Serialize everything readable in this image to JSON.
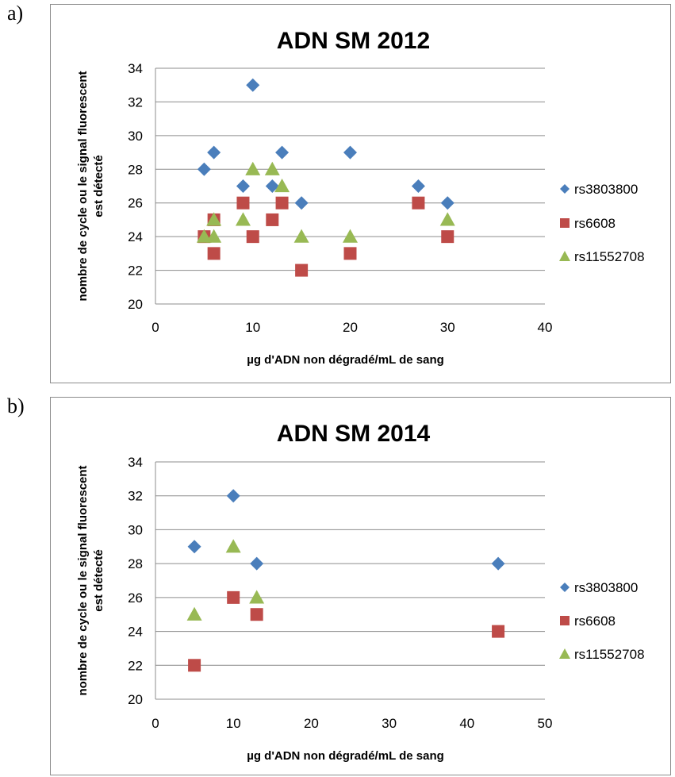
{
  "panels": [
    {
      "letter": "a)"
    },
    {
      "letter": "b)"
    }
  ],
  "colors": {
    "rs3803800": "#4a7ebb",
    "rs6608": "#be4b48",
    "rs11552708": "#98b954",
    "gridline": "#8c8c8c"
  },
  "chart_data": [
    {
      "type": "scatter",
      "title": "ADN SM 2012",
      "xlabel": "µg d'ADN non dégradé/mL de sang",
      "ylabel": "nombre de cycle ou le signal fluorescent est détecté",
      "xlim": [
        0,
        40
      ],
      "ylim": [
        20,
        34
      ],
      "xticks": [
        0,
        10,
        20,
        30,
        40
      ],
      "yticks": [
        20,
        22,
        24,
        26,
        28,
        30,
        32,
        34
      ],
      "grid": "horizontal",
      "legend": "right",
      "series": [
        {
          "name": "rs3803800",
          "marker": "diamond",
          "color": "#4a7ebb",
          "points": [
            [
              5,
              28
            ],
            [
              6,
              29
            ],
            [
              9,
              27
            ],
            [
              10,
              33
            ],
            [
              12,
              27
            ],
            [
              13,
              29
            ],
            [
              15,
              26
            ],
            [
              20,
              29
            ],
            [
              27,
              27
            ],
            [
              30,
              26
            ]
          ]
        },
        {
          "name": "rs6608",
          "marker": "square",
          "color": "#be4b48",
          "points": [
            [
              5,
              24
            ],
            [
              6,
              25
            ],
            [
              6,
              23
            ],
            [
              9,
              26
            ],
            [
              10,
              24
            ],
            [
              12,
              25
            ],
            [
              13,
              26
            ],
            [
              15,
              22
            ],
            [
              20,
              23
            ],
            [
              27,
              26
            ],
            [
              30,
              24
            ]
          ]
        },
        {
          "name": "rs11552708",
          "marker": "triangle",
          "color": "#98b954",
          "points": [
            [
              5,
              24
            ],
            [
              6,
              25
            ],
            [
              6,
              24
            ],
            [
              9,
              25
            ],
            [
              10,
              28
            ],
            [
              12,
              28
            ],
            [
              13,
              27
            ],
            [
              15,
              24
            ],
            [
              20,
              24
            ],
            [
              30,
              25
            ]
          ]
        }
      ]
    },
    {
      "type": "scatter",
      "title": "ADN SM 2014",
      "xlabel": "µg d'ADN non dégradé/mL de sang",
      "ylabel": "nombre de cycle ou le signal fluorescent est détecté",
      "xlim": [
        0,
        50
      ],
      "ylim": [
        20,
        34
      ],
      "xticks": [
        0,
        10,
        20,
        30,
        40,
        50
      ],
      "yticks": [
        20,
        22,
        24,
        26,
        28,
        30,
        32,
        34
      ],
      "grid": "horizontal",
      "legend": "right",
      "series": [
        {
          "name": "rs3803800",
          "marker": "diamond",
          "color": "#4a7ebb",
          "points": [
            [
              5,
              29
            ],
            [
              10,
              32
            ],
            [
              13,
              28
            ],
            [
              44,
              28
            ]
          ]
        },
        {
          "name": "rs6608",
          "marker": "square",
          "color": "#be4b48",
          "points": [
            [
              5,
              22
            ],
            [
              10,
              26
            ],
            [
              13,
              25
            ],
            [
              44,
              24
            ]
          ]
        },
        {
          "name": "rs11552708",
          "marker": "triangle",
          "color": "#98b954",
          "points": [
            [
              5,
              25
            ],
            [
              10,
              29
            ],
            [
              13,
              26
            ]
          ]
        }
      ]
    }
  ]
}
